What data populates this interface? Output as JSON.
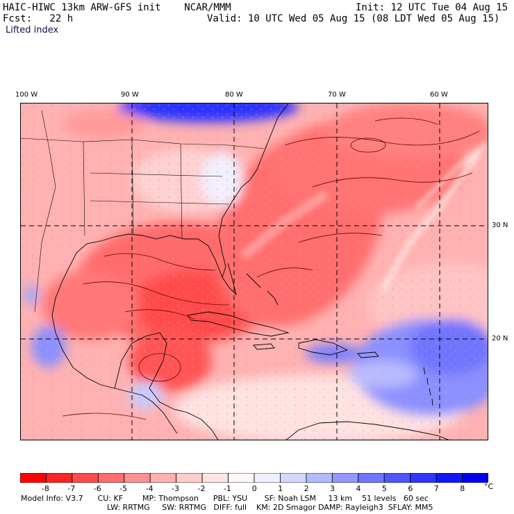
{
  "header": {
    "title": "HAIC-HIWC 13km ARW-GFS init    NCAR/MMM",
    "init": "Init: 12 UTC Tue 04 Aug 15",
    "fcst": "Fcst:   22 h",
    "valid": "Valid: 10 UTC Wed 05 Aug 15 (08 LDT Wed 05 Aug 15)",
    "field": "Lifted index"
  },
  "axes": {
    "lon_labels": [
      "100 W",
      "90 W",
      "80 W",
      "70 W",
      "60 W"
    ],
    "lat_labels": [
      "30 N",
      "20 N"
    ]
  },
  "colorbar": {
    "labels": [
      "-8",
      "-7",
      "-6",
      "-5",
      "-4",
      "-3",
      "-2",
      "-1",
      "0",
      "1",
      "2",
      "3",
      "4",
      "5",
      "6",
      "7",
      "8"
    ],
    "unit": "°C",
    "colors": [
      "#ff0000",
      "#ff2424",
      "#ff4a4a",
      "#ff6e6e",
      "#ff9090",
      "#ffb0b0",
      "#ffcccc",
      "#ffe4e4",
      "#fff6f6",
      "#eef0ff",
      "#d4d8ff",
      "#b4baff",
      "#9298ff",
      "#7076ff",
      "#5056ff",
      "#3036ff",
      "#1018ff",
      "#0000ee"
    ]
  },
  "footer": {
    "line1": "Model Info: V3.7      CU: KF        MP: Thompson      PBL: YSU       SF: Noah LSM     13 km    51 levels   60 sec",
    "line2": "LW: RRTMG     SW: RRTMG   DIFF: full    KM: 2D Smagor DAMP: Rayleigh3  SFLAY: MM5"
  }
}
